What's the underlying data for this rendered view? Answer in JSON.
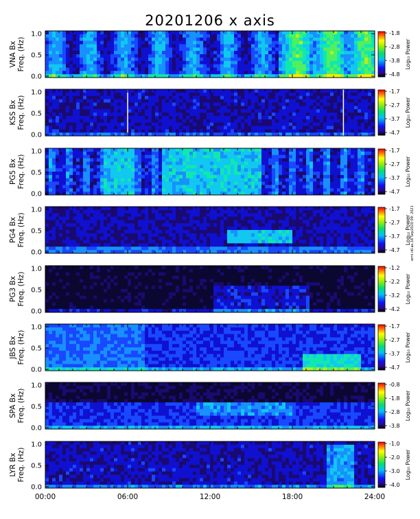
{
  "chart_data": {
    "title": "20201206  x axis",
    "type": "heatmap",
    "xlim": [
      0,
      24
    ],
    "x_ticks": [
      "00:00",
      "06:00",
      "12:00",
      "18:00",
      "24:00"
    ],
    "ylim": [
      0,
      1.0
    ],
    "y_ticks": [
      "0.0",
      "0.5",
      "1.0"
    ],
    "colorbar_label": "Log₁₀ Power",
    "stations": [
      {
        "name": "VNA Bx",
        "ylabel": "Freq. (Hz)",
        "cb_ticks": [
          "-1.8",
          "-2.8",
          "-3.8",
          "-4.8"
        ],
        "cmin": -4.8,
        "cmax": -1.8
      },
      {
        "name": "KSS Bx",
        "ylabel": "Freq. (Hz)",
        "cb_ticks": [
          "-1.7",
          "-2.7",
          "-3.7",
          "-4.7"
        ],
        "cmin": -4.7,
        "cmax": -1.7
      },
      {
        "name": "PG5 Bx",
        "ylabel": "Freq. (Hz)",
        "cb_ticks": [
          "-1.7",
          "-2.7",
          "-3.7",
          "-4.7"
        ],
        "cmin": -4.7,
        "cmax": -1.7
      },
      {
        "name": "PG4 Bx",
        "ylabel": "Freq. (Hz)",
        "cb_ticks": [
          "-1.7",
          "-2.7",
          "-3.7",
          "-4.7"
        ],
        "cmin": -4.7,
        "cmax": -1.7
      },
      {
        "name": "PG3 Bx",
        "ylabel": "Freq. (Hz)",
        "cb_ticks": [
          "-1.2",
          "-2.2",
          "-3.2",
          "-4.2"
        ],
        "cmin": -4.2,
        "cmax": -1.2
      },
      {
        "name": "JBS Bx",
        "ylabel": "Freq. (Hz)",
        "cb_ticks": [
          "-1.7",
          "-2.7",
          "-3.7",
          "-4.7"
        ],
        "cmin": -4.7,
        "cmax": -1.7
      },
      {
        "name": "SPA Bx",
        "ylabel": "Freq. (Hz)",
        "cb_ticks": [
          "-0.8",
          "-1.8",
          "-2.8",
          "-3.8"
        ],
        "cmin": -3.8,
        "cmax": -0.8
      },
      {
        "name": "LYR Bx",
        "ylabel": "Freq. (Hz)",
        "cb_ticks": [
          "-1.0",
          "-2.0",
          "-3.0",
          "-4.0"
        ],
        "cmin": -4.0,
        "cmax": -1.0
      }
    ],
    "credit": "wmi.idl.as.16 Sep2020 09: 2021"
  }
}
